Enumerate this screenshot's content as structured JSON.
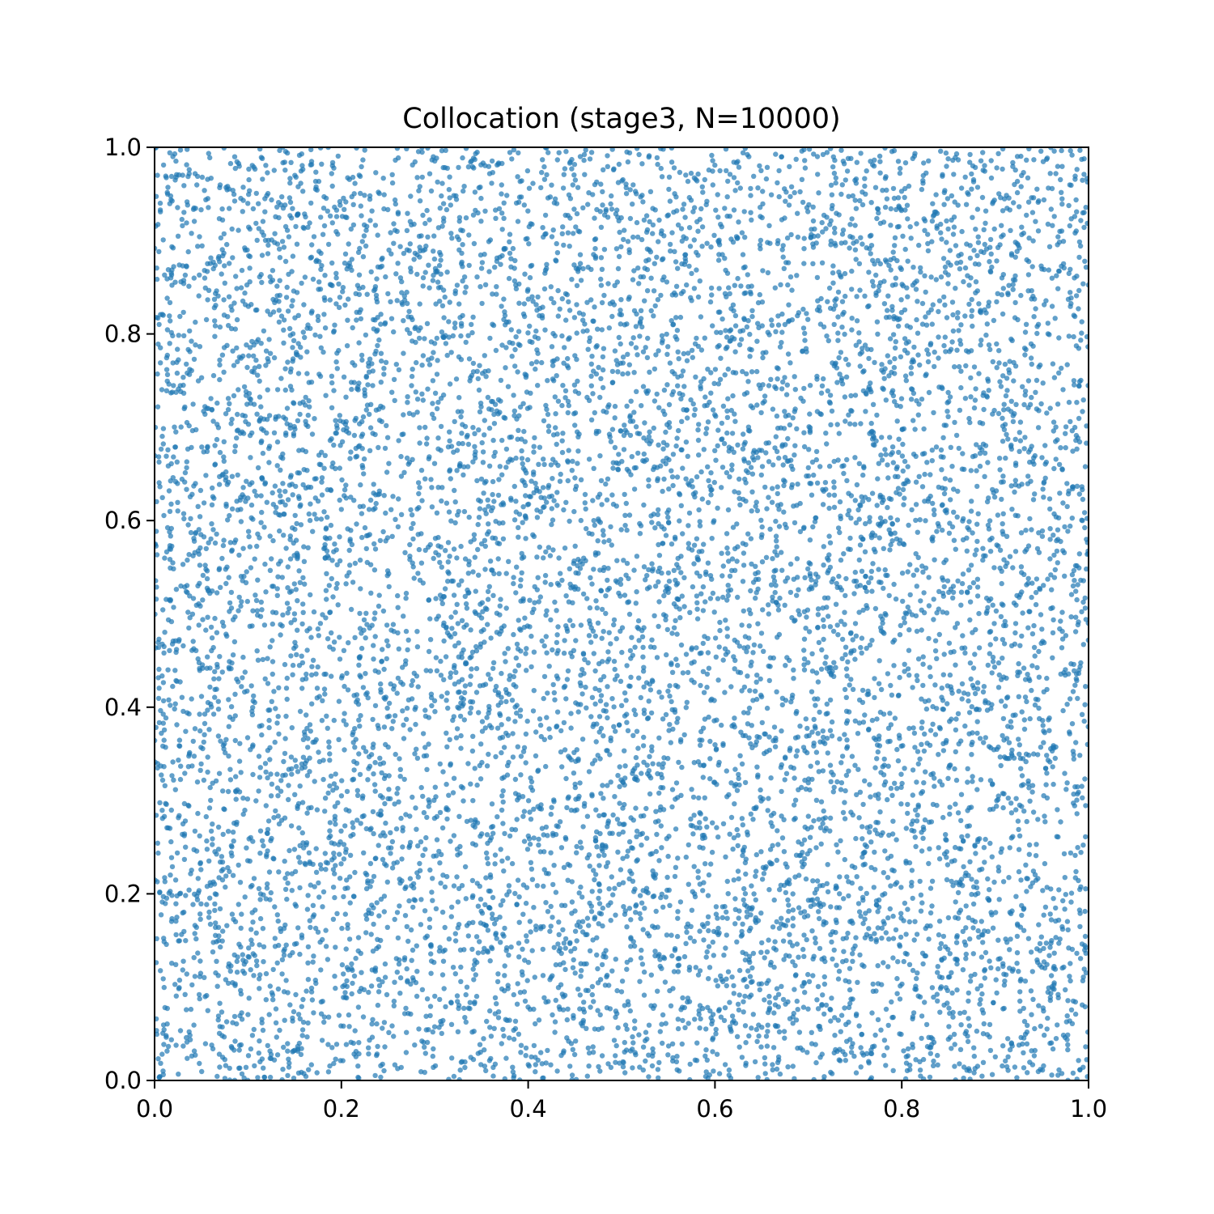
{
  "chart_data": {
    "type": "scatter",
    "title": "Collocation (stage3, N=10000)",
    "xlabel": "",
    "ylabel": "",
    "xlim": [
      0.0,
      1.0
    ],
    "ylim": [
      0.0,
      1.0
    ],
    "x_ticks": [
      "0.0",
      "0.2",
      "0.4",
      "0.6",
      "0.8",
      "1.0"
    ],
    "y_ticks": [
      "0.0",
      "0.2",
      "0.4",
      "0.6",
      "0.8",
      "1.0"
    ],
    "grid": false,
    "legend": "none",
    "point_count": 10000,
    "distribution": "uniform random over [0,1] x [0,1]",
    "marker_color": "#1f77b4",
    "marker_alpha": 0.7
  }
}
